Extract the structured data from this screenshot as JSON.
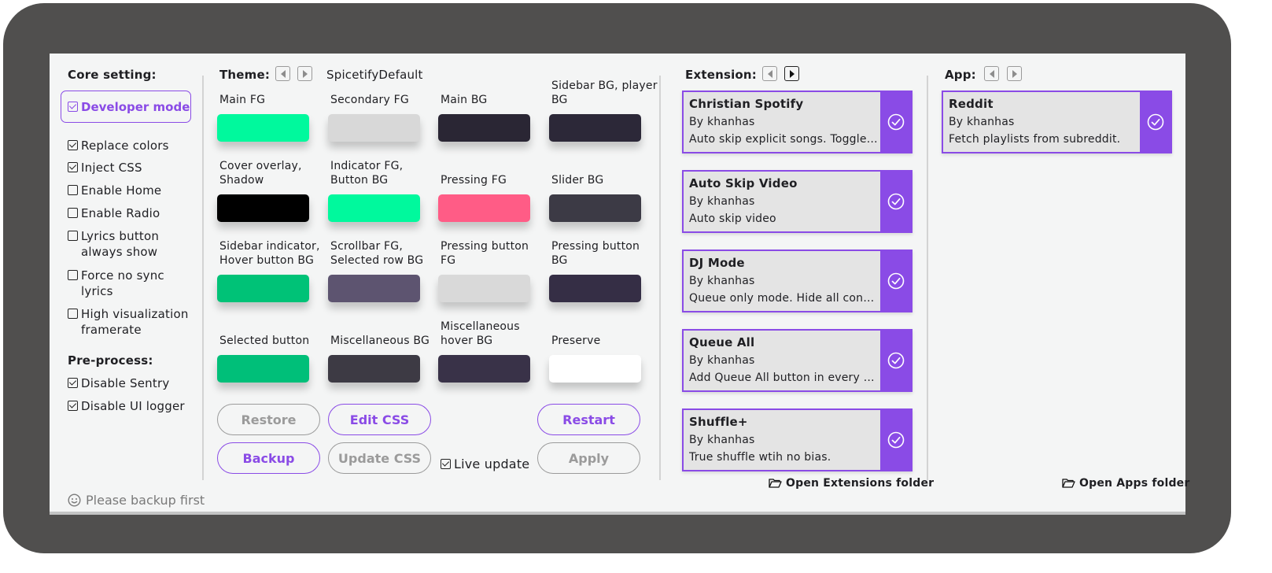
{
  "core": {
    "title": "Core setting:",
    "developer_mode": "Developer mode",
    "options": [
      {
        "label": "Replace colors",
        "checked": true
      },
      {
        "label": "Inject CSS",
        "checked": true
      },
      {
        "label": "Enable Home",
        "checked": false
      },
      {
        "label": "Enable Radio",
        "checked": false
      },
      {
        "label": "Lyrics button always show",
        "checked": false
      },
      {
        "label": "Force no sync lyrics",
        "checked": false
      },
      {
        "label": "High visualization framerate",
        "checked": false
      }
    ],
    "preprocess_title": "Pre-process:",
    "preprocess": [
      {
        "label": "Disable Sentry",
        "checked": true
      },
      {
        "label": "Disable UI logger",
        "checked": true
      }
    ],
    "note": "Please backup first"
  },
  "theme": {
    "title": "Theme:",
    "name": "SpicetifyDefault",
    "colors": [
      {
        "label": "Main FG",
        "color": "#00f99d"
      },
      {
        "label": "Secondary FG",
        "color": "#d8d8d8"
      },
      {
        "label": "Main BG",
        "color": "#2a2634"
      },
      {
        "label": "Sidebar BG, player BG",
        "color": "#2c2838"
      },
      {
        "label": "Cover overlay, Shadow",
        "color": "#000000"
      },
      {
        "label": "Indicator FG, Button BG",
        "color": "#00f99d"
      },
      {
        "label": "Pressing FG",
        "color": "#ff5c86"
      },
      {
        "label": "Slider BG",
        "color": "#3c3a45"
      },
      {
        "label": "Sidebar indicator, Hover button BG",
        "color": "#00c277"
      },
      {
        "label": "Scrollbar FG, Selected row BG",
        "color": "#5d5470"
      },
      {
        "label": "Pressing button FG",
        "color": "#d9d9d9"
      },
      {
        "label": "Pressing button BG",
        "color": "#352e45"
      },
      {
        "label": "Selected button",
        "color": "#00bf79"
      },
      {
        "label": "Miscellaneous BG",
        "color": "#3d3a44"
      },
      {
        "label": "Miscellaneous hover BG",
        "color": "#393248"
      },
      {
        "label": "Preserve",
        "color": "#ffffff"
      }
    ],
    "buttons": {
      "restore": "Restore",
      "edit_css": "Edit CSS",
      "restart": "Restart",
      "backup": "Backup",
      "update_css": "Update CSS",
      "live_update": "Live update",
      "apply": "Apply"
    }
  },
  "extension": {
    "title": "Extension:",
    "items": [
      {
        "name": "Christian Spotify",
        "author": "By khanhas",
        "desc": "Auto skip explicit songs. Toggle it in Profile menu."
      },
      {
        "name": "Auto Skip Video",
        "author": "By khanhas",
        "desc": "Auto skip video"
      },
      {
        "name": "DJ Mode",
        "author": "By khanhas",
        "desc": "Queue only mode. Hide all controls."
      },
      {
        "name": "Queue All",
        "author": "By khanhas",
        "desc": "Add Queue All button in every album."
      },
      {
        "name": "Shuffle+",
        "author": "By khanhas",
        "desc": "True shuffle wtih no bias."
      }
    ],
    "open_folder": "Open Extensions folder"
  },
  "app": {
    "title": "App:",
    "items": [
      {
        "name": "Reddit",
        "author": "By khanhas",
        "desc": "Fetch playlists from subreddit."
      }
    ],
    "open_folder": "Open Apps folder"
  }
}
